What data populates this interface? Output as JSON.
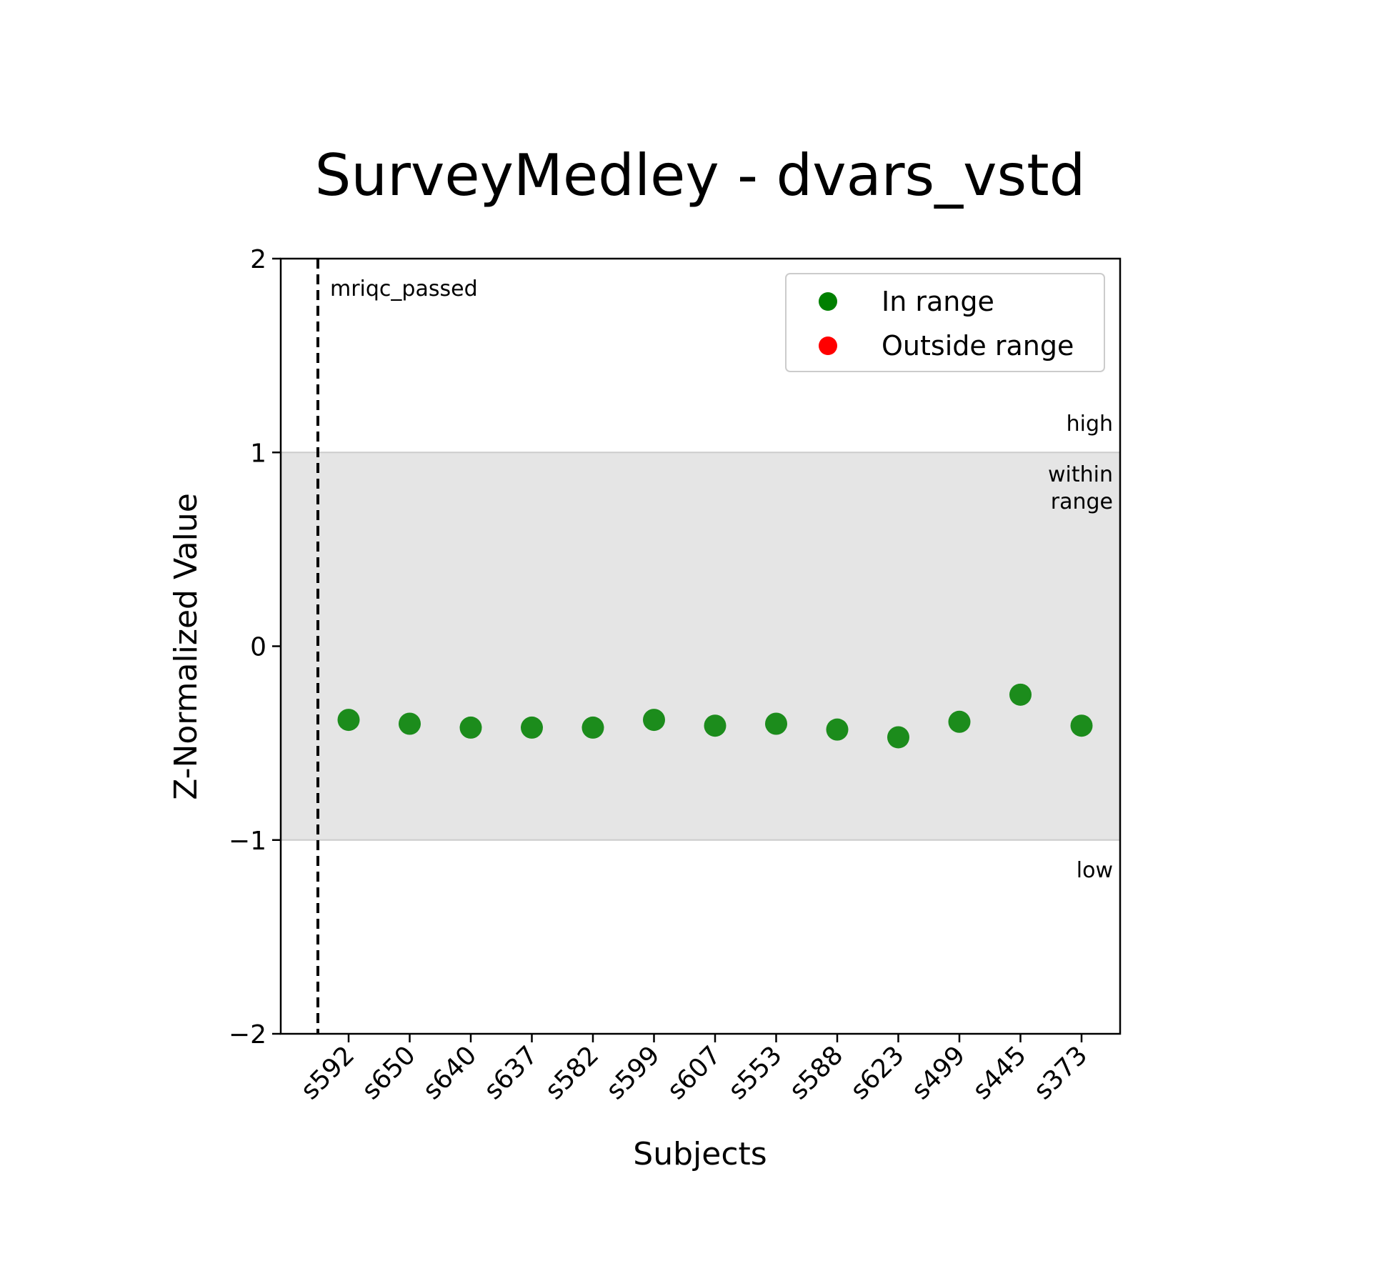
{
  "chart_data": {
    "type": "scatter",
    "title": "SurveyMedley - dvars_vstd",
    "xlabel": "Subjects",
    "ylabel": "Z-Normalized Value",
    "ylim": [
      -2,
      2
    ],
    "yticks": [
      -2,
      -1,
      0,
      1,
      2
    ],
    "ytick_labels": [
      "−2",
      "−1",
      "0",
      "1",
      "2"
    ],
    "categories": [
      "s592",
      "s650",
      "s640",
      "s637",
      "s582",
      "s599",
      "s607",
      "s553",
      "s588",
      "s623",
      "s499",
      "s445",
      "s373"
    ],
    "series": [
      {
        "name": "In range",
        "color": "#008000",
        "values": [
          -0.38,
          -0.4,
          -0.42,
          -0.42,
          -0.42,
          -0.38,
          -0.41,
          -0.4,
          -0.43,
          -0.47,
          -0.39,
          -0.25,
          -0.41
        ]
      },
      {
        "name": "Outside range",
        "color": "#ff0000",
        "values": []
      }
    ],
    "legend": {
      "placement": "top-right",
      "entries": [
        "In range",
        "Outside range"
      ]
    },
    "shaded_range": {
      "y0": -1,
      "y1": 1,
      "color": "#e5e5e5"
    },
    "region_labels": {
      "high": "high",
      "within": [
        "within",
        "range"
      ],
      "low": "low"
    },
    "vline": {
      "position": "before s592",
      "style": "dashed",
      "label": "mriqc_passed"
    },
    "grid": false
  }
}
